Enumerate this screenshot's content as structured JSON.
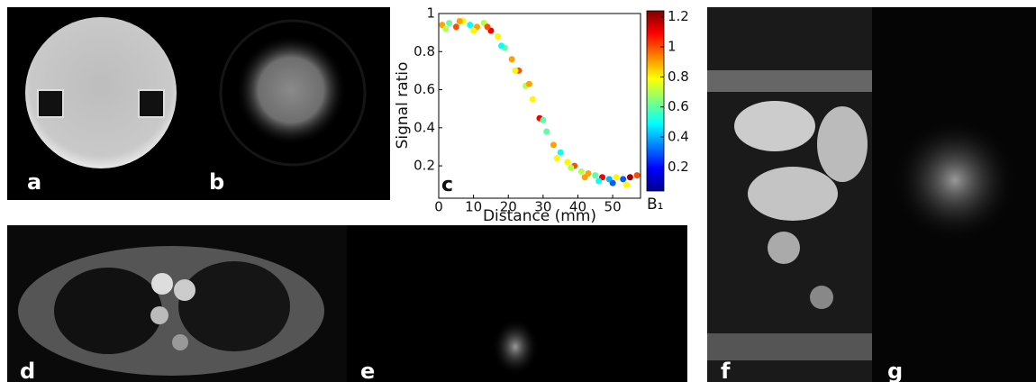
{
  "panels": {
    "labels": [
      "a",
      "b",
      "c",
      "d",
      "e",
      "f",
      "g"
    ]
  },
  "chart_data": {
    "type": "scatter",
    "xlabel": "Distance (mm)",
    "ylabel": "Signal ratio",
    "xlim": [
      0,
      58
    ],
    "ylim": [
      0.03,
      1.0
    ],
    "xticks": [
      0,
      10,
      20,
      30,
      40,
      50
    ],
    "yticks": [
      0.2,
      0.4,
      0.6,
      0.8,
      1
    ],
    "x": [
      1,
      3,
      5,
      7,
      9,
      11,
      13,
      15,
      17,
      19,
      21,
      23,
      25,
      27,
      29,
      31,
      33,
      35,
      37,
      39,
      41,
      43,
      45,
      47,
      49,
      51,
      53,
      55,
      57,
      2,
      6,
      10,
      14,
      18,
      22,
      26,
      30,
      34,
      38,
      42,
      46,
      50,
      54
    ],
    "values": [
      0.94,
      0.95,
      0.93,
      0.96,
      0.94,
      0.93,
      0.95,
      0.91,
      0.88,
      0.82,
      0.76,
      0.7,
      0.62,
      0.55,
      0.45,
      0.38,
      0.31,
      0.27,
      0.22,
      0.2,
      0.17,
      0.16,
      0.15,
      0.14,
      0.13,
      0.14,
      0.13,
      0.14,
      0.15,
      0.92,
      0.96,
      0.91,
      0.93,
      0.83,
      0.7,
      0.63,
      0.44,
      0.24,
      0.19,
      0.14,
      0.12,
      0.11,
      0.1
    ],
    "b1": [
      0.9,
      0.6,
      1.0,
      0.8,
      0.5,
      0.9,
      0.7,
      1.1,
      0.8,
      0.6,
      0.9,
      1.0,
      0.7,
      0.8,
      1.1,
      0.6,
      0.9,
      0.5,
      0.8,
      1.0,
      0.7,
      0.9,
      0.6,
      1.1,
      0.4,
      0.8,
      0.3,
      1.2,
      1.0,
      0.7,
      0.9,
      0.8,
      1.0,
      0.5,
      0.8,
      0.9,
      0.6,
      0.8,
      0.7,
      0.9,
      0.5,
      0.3,
      0.8
    ],
    "colorbar_label": "B₁",
    "colorbar_lim": [
      0.04,
      1.24
    ],
    "colorbar_ticks": [
      0.2,
      0.4,
      0.6,
      0.8,
      1,
      1.2
    ]
  }
}
